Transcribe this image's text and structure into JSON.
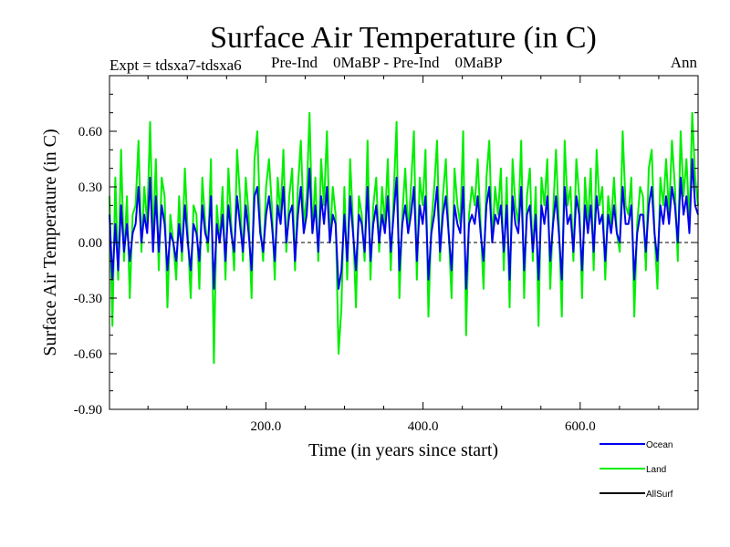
{
  "chart_data": {
    "type": "line",
    "title": "Surface Air Temperature (in C)",
    "subtitle_left": "Expt = tdsxa7-tdsxa6",
    "subtitle_mid": "Pre-Ind    0MaBP - Pre-Ind    0MaBP",
    "subtitle_right": "Ann",
    "xlabel": "Time (in years since start)",
    "ylabel": "Surface Air Temperature (in C)",
    "xlim": [
      1,
      750
    ],
    "ylim": [
      -0.9,
      0.9
    ],
    "x_ticks": [
      200,
      400,
      600
    ],
    "x_tick_labels": [
      "200.0",
      "400.0",
      "600.0"
    ],
    "y_ticks": [
      -0.9,
      -0.6,
      -0.3,
      0.0,
      0.3,
      0.6
    ],
    "y_tick_labels": [
      "-0.90",
      "-0.60",
      "-0.30",
      "0.00",
      "0.30",
      "0.60"
    ],
    "zero_line": true,
    "legend_position": "bottom-right, below plot",
    "series": [
      {
        "name": "Land",
        "color": "#00ee00",
        "values": [
          0.25,
          -0.45,
          0.35,
          -0.2,
          0.5,
          -0.1,
          0.25,
          -0.3,
          0.15,
          0.2,
          0.55,
          -0.05,
          0.3,
          0.1,
          0.65,
          0.0,
          0.45,
          -0.15,
          0.35,
          0.25,
          -0.35,
          0.15,
          0.0,
          -0.2,
          0.25,
          -0.1,
          0.4,
          0.05,
          -0.3,
          0.2,
          0.15,
          -0.25,
          0.35,
          0.1,
          -0.05,
          0.45,
          -0.65,
          0.2,
          0.0,
          0.3,
          -0.2,
          0.4,
          0.1,
          -0.15,
          0.5,
          0.25,
          -0.1,
          0.35,
          0.15,
          -0.3,
          0.45,
          0.6,
          0.1,
          -0.1,
          0.3,
          0.45,
          0.2,
          -0.2,
          0.35,
          0.15,
          0.5,
          -0.05,
          0.25,
          0.4,
          -0.15,
          0.3,
          0.55,
          0.1,
          0.25,
          0.7,
          0.05,
          0.35,
          -0.1,
          0.45,
          0.2,
          0.6,
          0.0,
          0.3,
          0.15,
          -0.6,
          -0.35,
          0.3,
          -0.2,
          0.45,
          0.1,
          -0.35,
          0.25,
          0.15,
          -0.1,
          0.55,
          -0.2,
          0.2,
          0.35,
          -0.05,
          0.3,
          0.1,
          0.45,
          -0.15,
          0.25,
          0.65,
          -0.3,
          0.15,
          0.4,
          0.05,
          0.3,
          0.6,
          -0.2,
          0.35,
          0.2,
          0.5,
          -0.4,
          0.1,
          0.3,
          0.55,
          -0.1,
          0.25,
          0.45,
          0.05,
          -0.3,
          0.4,
          0.2,
          0.1,
          0.6,
          -0.5,
          0.15,
          0.3,
          0.2,
          0.45,
          0.1,
          -0.25,
          0.35,
          0.55,
          0.0,
          0.3,
          0.15,
          0.4,
          -0.15,
          0.35,
          -0.35,
          0.45,
          0.2,
          0.1,
          0.55,
          -0.3,
          0.25,
          0.4,
          -0.1,
          0.3,
          -0.45,
          0.35,
          0.2,
          0.45,
          -0.25,
          0.15,
          0.5,
          0.1,
          -0.4,
          0.55,
          0.2,
          0.3,
          -0.1,
          0.45,
          0.25,
          -0.3,
          0.35,
          0.1,
          0.4,
          -0.15,
          0.5,
          0.2,
          0.3,
          -0.2,
          0.25,
          0.1,
          0.35,
          0.05,
          -0.05,
          0.6,
          0.2,
          0.15,
          0.35,
          -0.4,
          0.1,
          0.3,
          0.25,
          -0.15,
          0.4,
          0.5,
          0.05,
          -0.25,
          0.35,
          0.2,
          0.45,
          0.15,
          0.55,
          0.3,
          -0.1,
          0.6,
          0.25,
          0.45,
          0.1,
          0.7,
          0.35,
          0.2
        ],
        "note": "Roughly 200 samples evenly spread over years 1–750; approximate noisy annual anomaly trace"
      },
      {
        "name": "Ocean",
        "color": "#0000ee",
        "values": [
          0.15,
          -0.2,
          0.1,
          -0.15,
          0.2,
          -0.05,
          0.1,
          -0.1,
          0.05,
          0.1,
          0.3,
          0.0,
          0.15,
          0.05,
          0.35,
          -0.05,
          0.25,
          -0.05,
          0.2,
          0.1,
          -0.15,
          0.05,
          0.0,
          -0.1,
          0.1,
          -0.05,
          0.2,
          0.0,
          -0.15,
          0.1,
          0.05,
          -0.1,
          0.2,
          0.05,
          0.0,
          0.25,
          -0.25,
          0.1,
          0.0,
          0.15,
          -0.1,
          0.2,
          0.05,
          -0.05,
          0.25,
          0.1,
          -0.05,
          0.2,
          0.05,
          -0.15,
          0.25,
          0.3,
          0.05,
          -0.05,
          0.15,
          0.25,
          0.1,
          -0.1,
          0.2,
          0.1,
          0.3,
          0.0,
          0.15,
          0.2,
          -0.1,
          0.15,
          0.3,
          0.05,
          0.15,
          0.4,
          0.05,
          0.2,
          -0.05,
          0.25,
          0.1,
          0.3,
          0.0,
          0.15,
          0.1,
          -0.25,
          -0.15,
          0.15,
          -0.1,
          0.25,
          0.05,
          -0.15,
          0.15,
          0.1,
          -0.05,
          0.3,
          -0.1,
          0.1,
          0.2,
          0.0,
          0.15,
          0.05,
          0.25,
          -0.05,
          0.15,
          0.35,
          -0.15,
          0.1,
          0.2,
          0.05,
          0.15,
          0.3,
          -0.1,
          0.2,
          0.1,
          0.25,
          -0.2,
          0.05,
          0.15,
          0.3,
          -0.05,
          0.15,
          0.25,
          0.05,
          -0.15,
          0.2,
          0.1,
          0.05,
          0.3,
          -0.25,
          0.1,
          0.15,
          0.1,
          0.25,
          0.05,
          -0.1,
          0.2,
          0.3,
          0.0,
          0.15,
          0.1,
          0.2,
          -0.05,
          0.2,
          -0.2,
          0.25,
          0.1,
          0.05,
          0.3,
          -0.15,
          0.15,
          0.2,
          -0.05,
          0.15,
          -0.2,
          0.2,
          0.1,
          0.25,
          -0.1,
          0.1,
          0.25,
          0.05,
          -0.2,
          0.3,
          0.1,
          0.15,
          -0.05,
          0.25,
          0.15,
          -0.15,
          0.2,
          0.05,
          0.2,
          -0.05,
          0.25,
          0.1,
          0.15,
          -0.1,
          0.15,
          0.05,
          0.2,
          0.05,
          0.0,
          0.3,
          0.1,
          0.1,
          0.2,
          -0.2,
          0.05,
          0.15,
          0.15,
          -0.05,
          0.2,
          0.3,
          0.05,
          -0.1,
          0.2,
          0.1,
          0.25,
          0.1,
          0.3,
          0.2,
          0.0,
          0.35,
          0.15,
          0.25,
          0.05,
          0.45,
          0.2,
          0.15
        ],
        "note": "Roughly 200 samples evenly spread over years 1–750; approximate lower-variance trace"
      },
      {
        "name": "AllSurf",
        "color": "#000000",
        "values": []
      }
    ]
  }
}
